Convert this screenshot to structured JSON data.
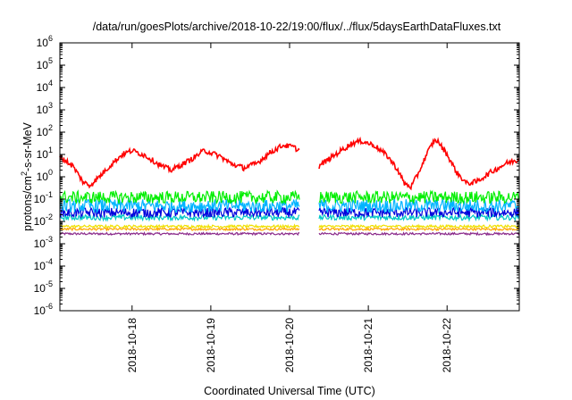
{
  "chart_data": {
    "type": "line",
    "title": "/data/run/goesPlots/archive/2018-10-22/19:00/flux/../flux/5daysEarthDataFluxes.txt",
    "xlabel": "Coordinated Universal Time (UTC)",
    "ylabel": {
      "pre": "protons/cm",
      "sup": "2",
      "post": "-s-sr-MeV"
    },
    "x_unit": "days",
    "xlim": [
      2018.1017,
      2018.1023
    ],
    "x_range": {
      "start": "2018-10-17 02:00",
      "end": "2018-10-22 22:00"
    },
    "x_ticks": [
      "2018-10-18",
      "2018-10-19",
      "2018-10-20",
      "2018-10-21",
      "2018-10-22"
    ],
    "y_scale": "log",
    "ylim": [
      1e-06,
      1000000.0
    ],
    "y_ticks": [
      {
        "base": "10",
        "exp": "-6"
      },
      {
        "base": "10",
        "exp": "-5"
      },
      {
        "base": "10",
        "exp": "-4"
      },
      {
        "base": "10",
        "exp": "-3"
      },
      {
        "base": "10",
        "exp": "-2"
      },
      {
        "base": "10",
        "exp": "-1"
      },
      {
        "base": "10",
        "exp": "0"
      },
      {
        "base": "10",
        "exp": "1"
      },
      {
        "base": "10",
        "exp": "2"
      },
      {
        "base": "10",
        "exp": "3"
      },
      {
        "base": "10",
        "exp": "4"
      },
      {
        "base": "10",
        "exp": "5"
      },
      {
        "base": "10",
        "exp": "6"
      }
    ],
    "grid": false,
    "data_gap": {
      "start": "2018-10-20 03:00",
      "end": "2018-10-20 09:00"
    },
    "series": [
      {
        "color": "#ff0000",
        "noise": 0.12,
        "points": [
          [
            "2018-10-17 02:00",
            8
          ],
          [
            "2018-10-17 06:00",
            3
          ],
          [
            "2018-10-17 09:00",
            0.6
          ],
          [
            "2018-10-17 11:00",
            0.4
          ],
          [
            "2018-10-17 14:00",
            1.0
          ],
          [
            "2018-10-17 18:00",
            4
          ],
          [
            "2018-10-17 21:00",
            10
          ],
          [
            "2018-10-18 00:00",
            15
          ],
          [
            "2018-10-18 04:00",
            9
          ],
          [
            "2018-10-18 09:00",
            3
          ],
          [
            "2018-10-18 12:00",
            2
          ],
          [
            "2018-10-18 18:00",
            6
          ],
          [
            "2018-10-18 22:00",
            15
          ],
          [
            "2018-10-19 00:00",
            12
          ],
          [
            "2018-10-19 03:00",
            8
          ],
          [
            "2018-10-19 06:00",
            4
          ],
          [
            "2018-10-19 10:00",
            2.5
          ],
          [
            "2018-10-19 14:00",
            4
          ],
          [
            "2018-10-19 18:00",
            12
          ],
          [
            "2018-10-19 22:00",
            26
          ],
          [
            "2018-10-20 01:00",
            22
          ],
          [
            "2018-10-20 03:00",
            15
          ],
          [
            "2018-10-20 09:00",
            3
          ],
          [
            "2018-10-20 14:00",
            10
          ],
          [
            "2018-10-20 19:00",
            32
          ],
          [
            "2018-10-20 22:00",
            40
          ],
          [
            "2018-10-21 02:00",
            25
          ],
          [
            "2018-10-21 06:00",
            8
          ],
          [
            "2018-10-21 09:00",
            2
          ],
          [
            "2018-10-21 11:00",
            0.5
          ],
          [
            "2018-10-21 13:00",
            0.35
          ],
          [
            "2018-10-21 15:00",
            1.2
          ],
          [
            "2018-10-21 18:00",
            12
          ],
          [
            "2018-10-21 20:00",
            40
          ],
          [
            "2018-10-21 21:00",
            42
          ],
          [
            "2018-10-22 00:00",
            10
          ],
          [
            "2018-10-22 03:00",
            1.5
          ],
          [
            "2018-10-22 06:00",
            0.5
          ],
          [
            "2018-10-22 09:00",
            0.6
          ],
          [
            "2018-10-22 13:00",
            1.5
          ],
          [
            "2018-10-22 18:00",
            4
          ],
          [
            "2018-10-22 22:00",
            6
          ]
        ]
      },
      {
        "color": "#00ee00",
        "level": 0.12,
        "noise": 0.28,
        "points": []
      },
      {
        "color": "#00b4ff",
        "level": 0.05,
        "noise": 0.3,
        "points": []
      },
      {
        "color": "#0000dd",
        "level": 0.025,
        "noise": 0.22,
        "points": []
      },
      {
        "color": "#00c8c8",
        "level": 0.015,
        "noise": 0.12,
        "points": []
      },
      {
        "color": "#f0e000",
        "level": 0.006,
        "noise": 0.06,
        "points": []
      },
      {
        "color": "#ffa500",
        "level": 0.0045,
        "noise": 0.05,
        "points": []
      },
      {
        "color": "#8b2a8b",
        "level": 0.0028,
        "noise": 0.05,
        "points": []
      }
    ]
  }
}
